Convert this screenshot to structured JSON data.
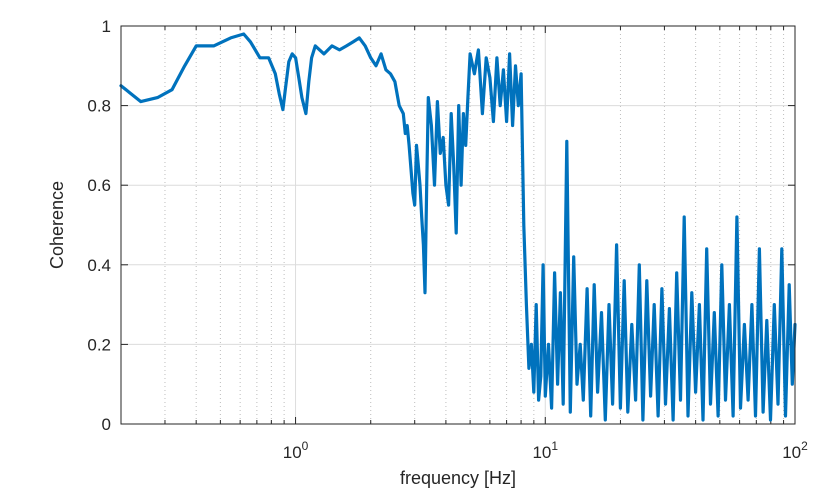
{
  "chart_data": {
    "type": "line",
    "title": "",
    "xlabel": "frequency [Hz]",
    "ylabel": "Coherence",
    "x_scale": "log",
    "xlim": [
      0.2,
      100
    ],
    "ylim": [
      0,
      1
    ],
    "grid": true,
    "legend": "none",
    "line_color": "#0072BD",
    "x_ticks": [
      {
        "value": 1,
        "base": "10",
        "exp": "0"
      },
      {
        "value": 10,
        "base": "10",
        "exp": "1"
      },
      {
        "value": 100,
        "base": "10",
        "exp": "2"
      }
    ],
    "y_ticks": [
      {
        "value": 0,
        "label": "0"
      },
      {
        "value": 0.2,
        "label": "0.2"
      },
      {
        "value": 0.4,
        "label": "0.4"
      },
      {
        "value": 0.6,
        "label": "0.6"
      },
      {
        "value": 0.8,
        "label": "0.8"
      },
      {
        "value": 1,
        "label": "1"
      }
    ],
    "series": [
      {
        "x": [
          0.2,
          0.24,
          0.28,
          0.32,
          0.36,
          0.4,
          0.47,
          0.55,
          0.62,
          0.66,
          0.72,
          0.78,
          0.83,
          0.86,
          0.89,
          0.91,
          0.94,
          0.97,
          1.0,
          1.03,
          1.06,
          1.1,
          1.13,
          1.16,
          1.2,
          1.3,
          1.4,
          1.5,
          1.6,
          1.7,
          1.8,
          1.9,
          2.0,
          2.1,
          2.2,
          2.3,
          2.4,
          2.5,
          2.6,
          2.7,
          2.75,
          2.8,
          2.85,
          2.9,
          2.95,
          3.0,
          3.05,
          3.1,
          3.15,
          3.2,
          3.25,
          3.3,
          3.35,
          3.4,
          3.5,
          3.6,
          3.7,
          3.8,
          3.9,
          4.0,
          4.1,
          4.2,
          4.3,
          4.4,
          4.5,
          4.6,
          4.7,
          4.8,
          4.9,
          5.0,
          5.2,
          5.4,
          5.6,
          5.8,
          6.0,
          6.2,
          6.4,
          6.6,
          6.8,
          7.0,
          7.2,
          7.4,
          7.6,
          7.8,
          8.0,
          8.2,
          8.4,
          8.6,
          8.8,
          9.0,
          9.2,
          9.4,
          9.6,
          9.8,
          10.0,
          10.3,
          10.6,
          10.9,
          11.2,
          11.5,
          11.8,
          12.2,
          12.6,
          13.0,
          13.4,
          13.8,
          14.2,
          14.7,
          15.2,
          15.7,
          16.2,
          16.8,
          17.4,
          18.0,
          18.6,
          19.3,
          20.0,
          20.7,
          21.4,
          22.2,
          23.0,
          23.8,
          24.6,
          25.5,
          26.4,
          27.3,
          28.3,
          29.3,
          30.3,
          31.4,
          32.5,
          33.6,
          34.8,
          36.0,
          37.3,
          38.6,
          40.0,
          41.4,
          42.8,
          44.3,
          45.9,
          47.5,
          49.2,
          50.9,
          52.7,
          54.6,
          56.5,
          58.5,
          60.5,
          62.7,
          64.9,
          67.2,
          69.5,
          72.0,
          74.5,
          77.1,
          79.8,
          82.6,
          85.5,
          88.5,
          91.6,
          94.8,
          97.5,
          100.0
        ],
        "y": [
          0.85,
          0.81,
          0.82,
          0.84,
          0.9,
          0.95,
          0.95,
          0.97,
          0.98,
          0.96,
          0.92,
          0.92,
          0.88,
          0.83,
          0.79,
          0.84,
          0.91,
          0.93,
          0.92,
          0.87,
          0.82,
          0.78,
          0.86,
          0.92,
          0.95,
          0.93,
          0.95,
          0.94,
          0.95,
          0.96,
          0.97,
          0.95,
          0.92,
          0.9,
          0.93,
          0.89,
          0.88,
          0.86,
          0.8,
          0.78,
          0.73,
          0.75,
          0.7,
          0.64,
          0.58,
          0.55,
          0.7,
          0.65,
          0.6,
          0.52,
          0.45,
          0.33,
          0.6,
          0.82,
          0.75,
          0.6,
          0.81,
          0.68,
          0.72,
          0.6,
          0.55,
          0.78,
          0.65,
          0.48,
          0.8,
          0.6,
          0.78,
          0.7,
          0.82,
          0.93,
          0.88,
          0.94,
          0.78,
          0.92,
          0.87,
          0.76,
          0.92,
          0.8,
          0.89,
          0.76,
          0.93,
          0.75,
          0.9,
          0.8,
          0.88,
          0.5,
          0.3,
          0.14,
          0.2,
          0.08,
          0.3,
          0.06,
          0.12,
          0.4,
          0.07,
          0.2,
          0.04,
          0.38,
          0.1,
          0.33,
          0.05,
          0.71,
          0.03,
          0.42,
          0.1,
          0.2,
          0.06,
          0.34,
          0.02,
          0.35,
          0.08,
          0.28,
          0.01,
          0.3,
          0.05,
          0.45,
          0.04,
          0.36,
          0.03,
          0.25,
          0.06,
          0.4,
          0.01,
          0.36,
          0.07,
          0.3,
          0.02,
          0.34,
          0.05,
          0.29,
          0.01,
          0.38,
          0.06,
          0.52,
          0.02,
          0.33,
          0.08,
          0.3,
          0.01,
          0.44,
          0.05,
          0.28,
          0.02,
          0.4,
          0.06,
          0.3,
          0.02,
          0.52,
          0.04,
          0.25,
          0.06,
          0.3,
          0.02,
          0.44,
          0.03,
          0.26,
          0.01,
          0.3,
          0.05,
          0.44,
          0.02,
          0.35,
          0.1,
          0.25
        ]
      }
    ]
  }
}
